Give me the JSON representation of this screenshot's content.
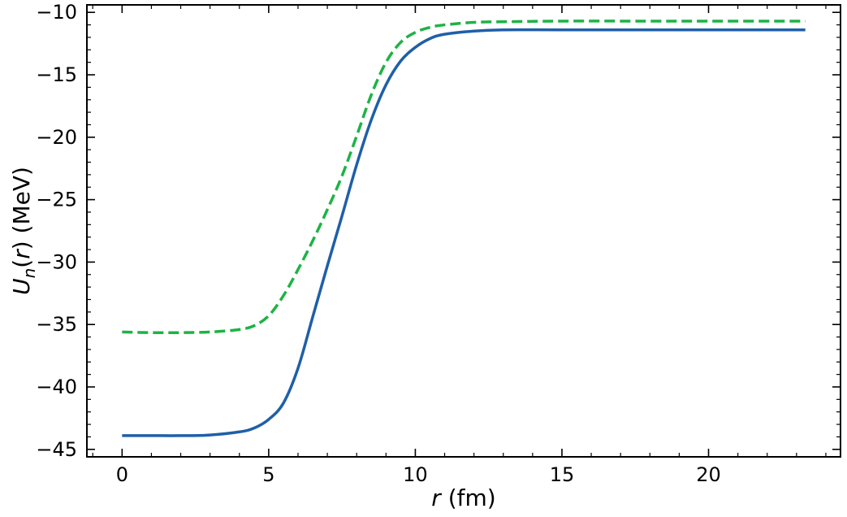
{
  "chart_data": {
    "type": "line",
    "xlabel": "r (fm)",
    "ylabel": "U_n(r) (MeV)",
    "xlim": [
      -1.2,
      24.5
    ],
    "ylim": [
      -45.6,
      -9.4
    ],
    "xticks": [
      0,
      5,
      10,
      15,
      20
    ],
    "yticks": [
      -45,
      -40,
      -35,
      -30,
      -25,
      -20,
      -15,
      -10
    ],
    "xtick_labels": [
      "0",
      "5",
      "10",
      "15",
      "20"
    ],
    "ytick_labels": [
      "−45",
      "−40",
      "−35",
      "−30",
      "−25",
      "−20",
      "−15",
      "−10"
    ],
    "x_minor_step": 1,
    "y_minor_step": 1,
    "ticks_direction": "in",
    "ticks_on_all_sides": true,
    "grid": false,
    "legend": "none",
    "series": [
      {
        "style": "solid",
        "color": "#1f5fa8",
        "points": [
          [
            0,
            -43.9
          ],
          [
            1,
            -43.9
          ],
          [
            2,
            -43.9
          ],
          [
            3,
            -43.85
          ],
          [
            4,
            -43.6
          ],
          [
            4.5,
            -43.3
          ],
          [
            5,
            -42.6
          ],
          [
            5.5,
            -41.3
          ],
          [
            6,
            -38.5
          ],
          [
            6.5,
            -34.4
          ],
          [
            7,
            -30.3
          ],
          [
            7.5,
            -26.3
          ],
          [
            8,
            -22.2
          ],
          [
            8.5,
            -18.6
          ],
          [
            9,
            -15.8
          ],
          [
            9.5,
            -13.9
          ],
          [
            10,
            -12.8
          ],
          [
            10.5,
            -12.1
          ],
          [
            11,
            -11.75
          ],
          [
            12,
            -11.5
          ],
          [
            13,
            -11.4
          ],
          [
            15,
            -11.4
          ],
          [
            18,
            -11.4
          ],
          [
            20,
            -11.4
          ],
          [
            23.3,
            -11.4
          ]
        ]
      },
      {
        "style": "dashed",
        "color": "#1db345",
        "points": [
          [
            0,
            -35.6
          ],
          [
            1,
            -35.65
          ],
          [
            2,
            -35.65
          ],
          [
            3,
            -35.6
          ],
          [
            4,
            -35.4
          ],
          [
            4.5,
            -35.1
          ],
          [
            5,
            -34.3
          ],
          [
            5.5,
            -32.7
          ],
          [
            6,
            -30.6
          ],
          [
            6.5,
            -28.3
          ],
          [
            7,
            -25.8
          ],
          [
            7.5,
            -23.1
          ],
          [
            8,
            -19.9
          ],
          [
            8.5,
            -16.6
          ],
          [
            9,
            -14.0
          ],
          [
            9.5,
            -12.4
          ],
          [
            10,
            -11.6
          ],
          [
            10.5,
            -11.2
          ],
          [
            11,
            -11.0
          ],
          [
            12,
            -10.8
          ],
          [
            13,
            -10.75
          ],
          [
            15,
            -10.7
          ],
          [
            18,
            -10.7
          ],
          [
            20,
            -10.7
          ],
          [
            23.3,
            -10.7
          ]
        ]
      }
    ]
  }
}
